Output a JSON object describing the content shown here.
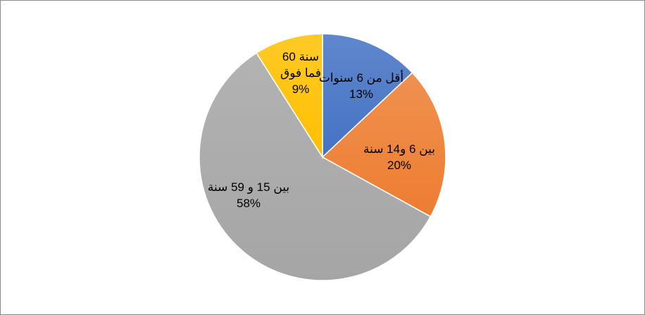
{
  "chart_data": {
    "type": "pie",
    "title": "",
    "slices": [
      {
        "label": "أقل من 6 سنوات",
        "value": 13,
        "percent_label": "13%",
        "color": "#4472C4"
      },
      {
        "label": "بين 6 و14  سنة",
        "value": 20,
        "percent_label": "20%",
        "color": "#ED7D31"
      },
      {
        "label": "بين 15  و 59 سنة",
        "value": 58,
        "percent_label": "58%",
        "color": "#A5A5A5"
      },
      {
        "label": "60 سنة فما فوق",
        "value": 9,
        "percent_label": "9%",
        "color": "#FFC000"
      }
    ],
    "label_lines": [
      [
        "أقل من 6 سنوات",
        "13%"
      ],
      [
        "بين 6 و14  سنة",
        "20%"
      ],
      [
        "بين 15  و 59 سنة",
        "58%"
      ],
      [
        "60 سنة",
        "فما فوق",
        "9%"
      ]
    ],
    "start_angle_deg": 0,
    "direction": "clockwise",
    "legend": "none"
  }
}
